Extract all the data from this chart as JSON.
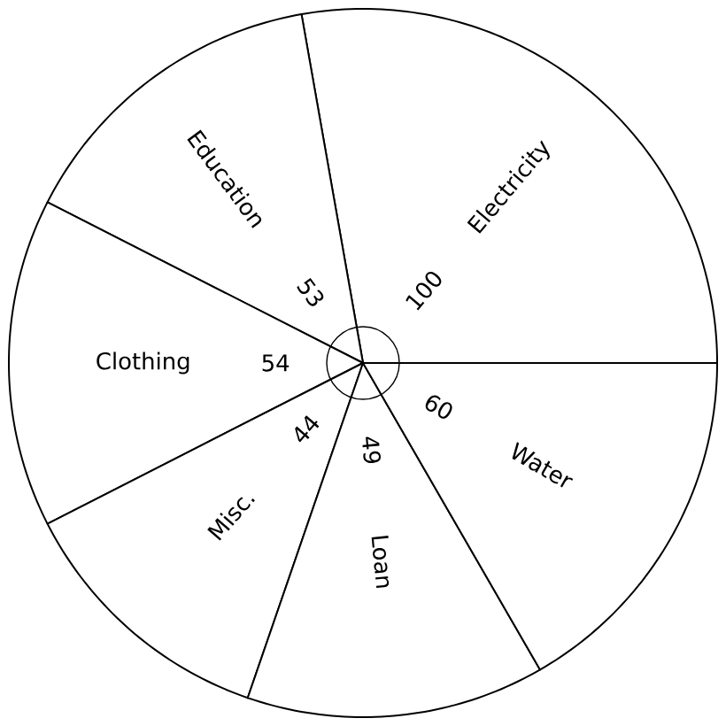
{
  "chart_data": {
    "type": "pie",
    "categories": [
      "Electricity",
      "Education",
      "Clothing",
      "Misc.",
      "Loan",
      "Water"
    ],
    "values": [
      100,
      53,
      54,
      44,
      49,
      60
    ],
    "colors": [
      "#ffffff",
      "#ffffff",
      "#ffffff",
      "#ffffff",
      "#ffffff",
      "#ffffff"
    ],
    "data_labels": true
  }
}
